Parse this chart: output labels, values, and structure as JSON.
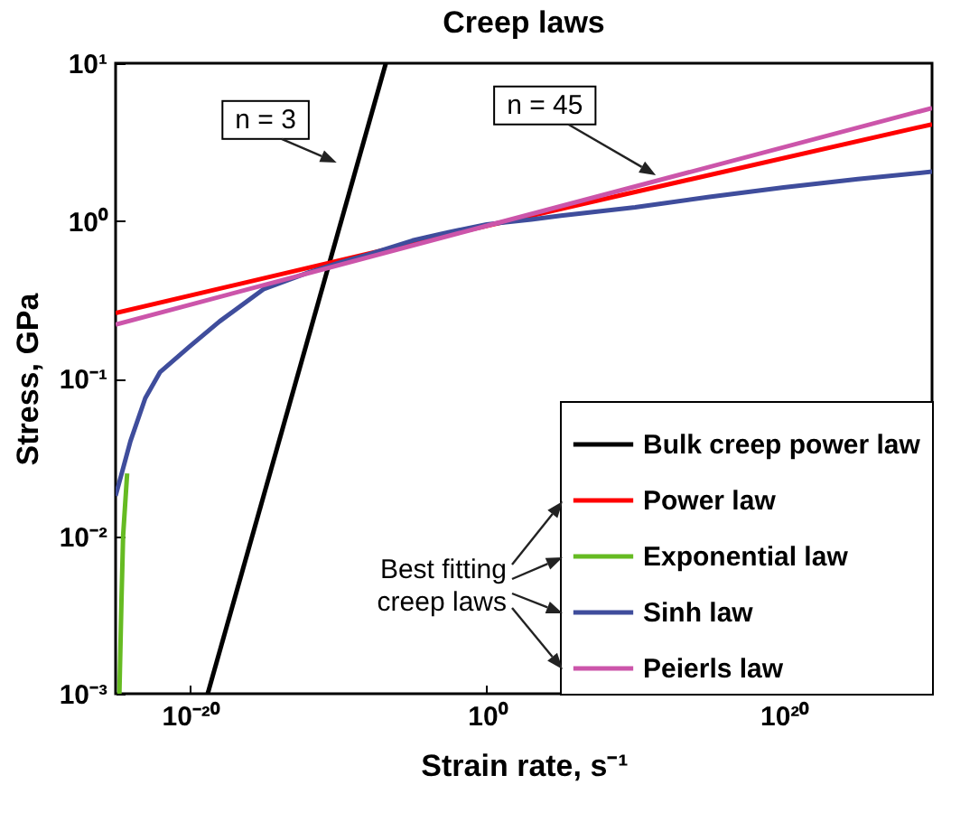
{
  "chart_data": {
    "type": "line",
    "title": "Creep laws",
    "xlabel": "Strain rate, s⁻¹",
    "ylabel": "Stress, GPa",
    "log": "xy",
    "xlim": [
      1e-25,
      1e+30
    ],
    "ylim": [
      0.001,
      10
    ],
    "xticks": [
      {
        "value": 1e-20,
        "label": "10⁻²⁰"
      },
      {
        "value": 1,
        "label": "10⁰"
      },
      {
        "value": 1e+20,
        "label": "10²⁰"
      }
    ],
    "yticks": [
      {
        "value": 0.001,
        "label": "10⁻³"
      },
      {
        "value": 0.01,
        "label": "10⁻²"
      },
      {
        "value": 0.1,
        "label": "10⁻¹"
      },
      {
        "value": 1,
        "label": "10⁰"
      },
      {
        "value": 10,
        "label": "10¹"
      }
    ],
    "grid": false,
    "legend": "bottom right",
    "series": [
      {
        "name": "Bulk creep power law",
        "color": "#000000",
        "x": [
          1.6e-19,
          1.6e-07
        ],
        "values": [
          0.001,
          10
        ]
      },
      {
        "name": "Power law",
        "color": "#ff0000",
        "x": [
          1e-25,
          1,
          1e+30
        ],
        "values": [
          0.26,
          0.93,
          4.1
        ]
      },
      {
        "name": "Exponential law",
        "color": "#66bb22",
        "x": [
          1.8e-25,
          2.5e-25,
          3.2e-25,
          6e-25
        ],
        "values": [
          0.001,
          0.004,
          0.01,
          0.025
        ]
      },
      {
        "name": "Sinh law",
        "color": "#3f4d9c",
        "x": [
          1e-25,
          1e-24,
          1e-23,
          1e-22,
          1e-20,
          1e-18,
          1e-15,
          1e-12,
          1e-10,
          1e-08,
          1e-05,
          0.001,
          1,
          1000.0,
          100000.0,
          10000000000.0,
          1000000000000000.0,
          1e+20,
          1e+25,
          1e+30
        ],
        "values": [
          0.018,
          0.04,
          0.075,
          0.11,
          0.16,
          0.23,
          0.37,
          0.47,
          0.54,
          0.61,
          0.75,
          0.83,
          0.95,
          1.02,
          1.08,
          1.22,
          1.42,
          1.63,
          1.84,
          2.05
        ]
      },
      {
        "name": "Peierls law",
        "color": "#cc55aa",
        "x": [
          1e-25,
          1,
          1e+30
        ],
        "values": [
          0.22,
          0.93,
          5.2
        ]
      }
    ],
    "annotations": [
      "n = 3",
      "n = 45",
      "Best fitting creep laws"
    ]
  }
}
